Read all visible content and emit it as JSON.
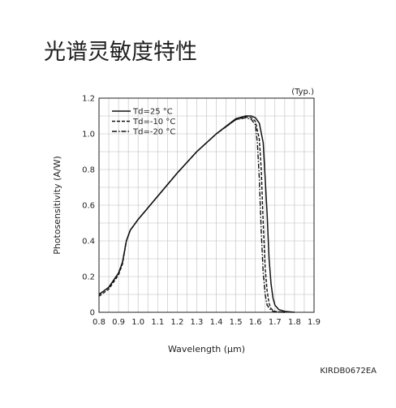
{
  "page": {
    "title": "光谱灵敏度特性",
    "ref_code": "KIRDB0672EA"
  },
  "chart_data": {
    "type": "line",
    "title": "光谱灵敏度特性",
    "note": "(Typ.)",
    "xlabel": "Wavelength (μm)",
    "ylabel": "Photosensitivity (A/W)",
    "xlim": [
      0.8,
      1.9
    ],
    "ylim": [
      0,
      1.2
    ],
    "x_ticks": [
      "0.8",
      "0.9",
      "1.0",
      "1.1",
      "1.2",
      "1.3",
      "1.4",
      "1.5",
      "1.6",
      "1.7",
      "1.8",
      "1.9"
    ],
    "y_ticks": [
      "0",
      "0.2",
      "0.4",
      "0.6",
      "0.8",
      "1.0",
      "1.2"
    ],
    "grid": true,
    "legend_position": "top-left",
    "series": [
      {
        "name": "Td=25 °C",
        "style": "solid",
        "x": [
          0.8,
          0.85,
          0.9,
          0.92,
          0.94,
          0.96,
          1.0,
          1.1,
          1.2,
          1.3,
          1.4,
          1.5,
          1.55,
          1.58,
          1.6,
          1.62,
          1.64,
          1.66,
          1.67,
          1.68,
          1.69,
          1.7,
          1.72,
          1.75,
          1.8
        ],
        "y": [
          0.1,
          0.14,
          0.22,
          0.28,
          0.4,
          0.46,
          0.52,
          0.65,
          0.78,
          0.9,
          1.0,
          1.085,
          1.1,
          1.1,
          1.09,
          1.06,
          0.95,
          0.55,
          0.3,
          0.16,
          0.08,
          0.04,
          0.015,
          0.005,
          0.0
        ]
      },
      {
        "name": "Td=-10 °C",
        "style": "dashed",
        "x": [
          0.8,
          0.85,
          0.9,
          0.92,
          0.94,
          0.96,
          1.0,
          1.1,
          1.2,
          1.3,
          1.4,
          1.5,
          1.55,
          1.58,
          1.6,
          1.62,
          1.63,
          1.64,
          1.65,
          1.66,
          1.67,
          1.68,
          1.7,
          1.75
        ],
        "y": [
          0.09,
          0.13,
          0.21,
          0.27,
          0.4,
          0.46,
          0.52,
          0.65,
          0.78,
          0.9,
          1.0,
          1.08,
          1.095,
          1.09,
          1.07,
          0.97,
          0.8,
          0.5,
          0.25,
          0.12,
          0.05,
          0.02,
          0.005,
          0.0
        ]
      },
      {
        "name": "Td=-20 °C",
        "style": "dashdot",
        "x": [
          0.8,
          0.85,
          0.9,
          0.92,
          0.94,
          0.96,
          1.0,
          1.1,
          1.2,
          1.3,
          1.4,
          1.5,
          1.55,
          1.58,
          1.6,
          1.61,
          1.62,
          1.63,
          1.64,
          1.65,
          1.66,
          1.68,
          1.7,
          1.75
        ],
        "y": [
          0.1,
          0.14,
          0.22,
          0.28,
          0.4,
          0.46,
          0.52,
          0.65,
          0.78,
          0.9,
          1.0,
          1.08,
          1.09,
          1.08,
          1.05,
          0.95,
          0.75,
          0.45,
          0.22,
          0.1,
          0.04,
          0.01,
          0.003,
          0.0
        ]
      }
    ]
  }
}
